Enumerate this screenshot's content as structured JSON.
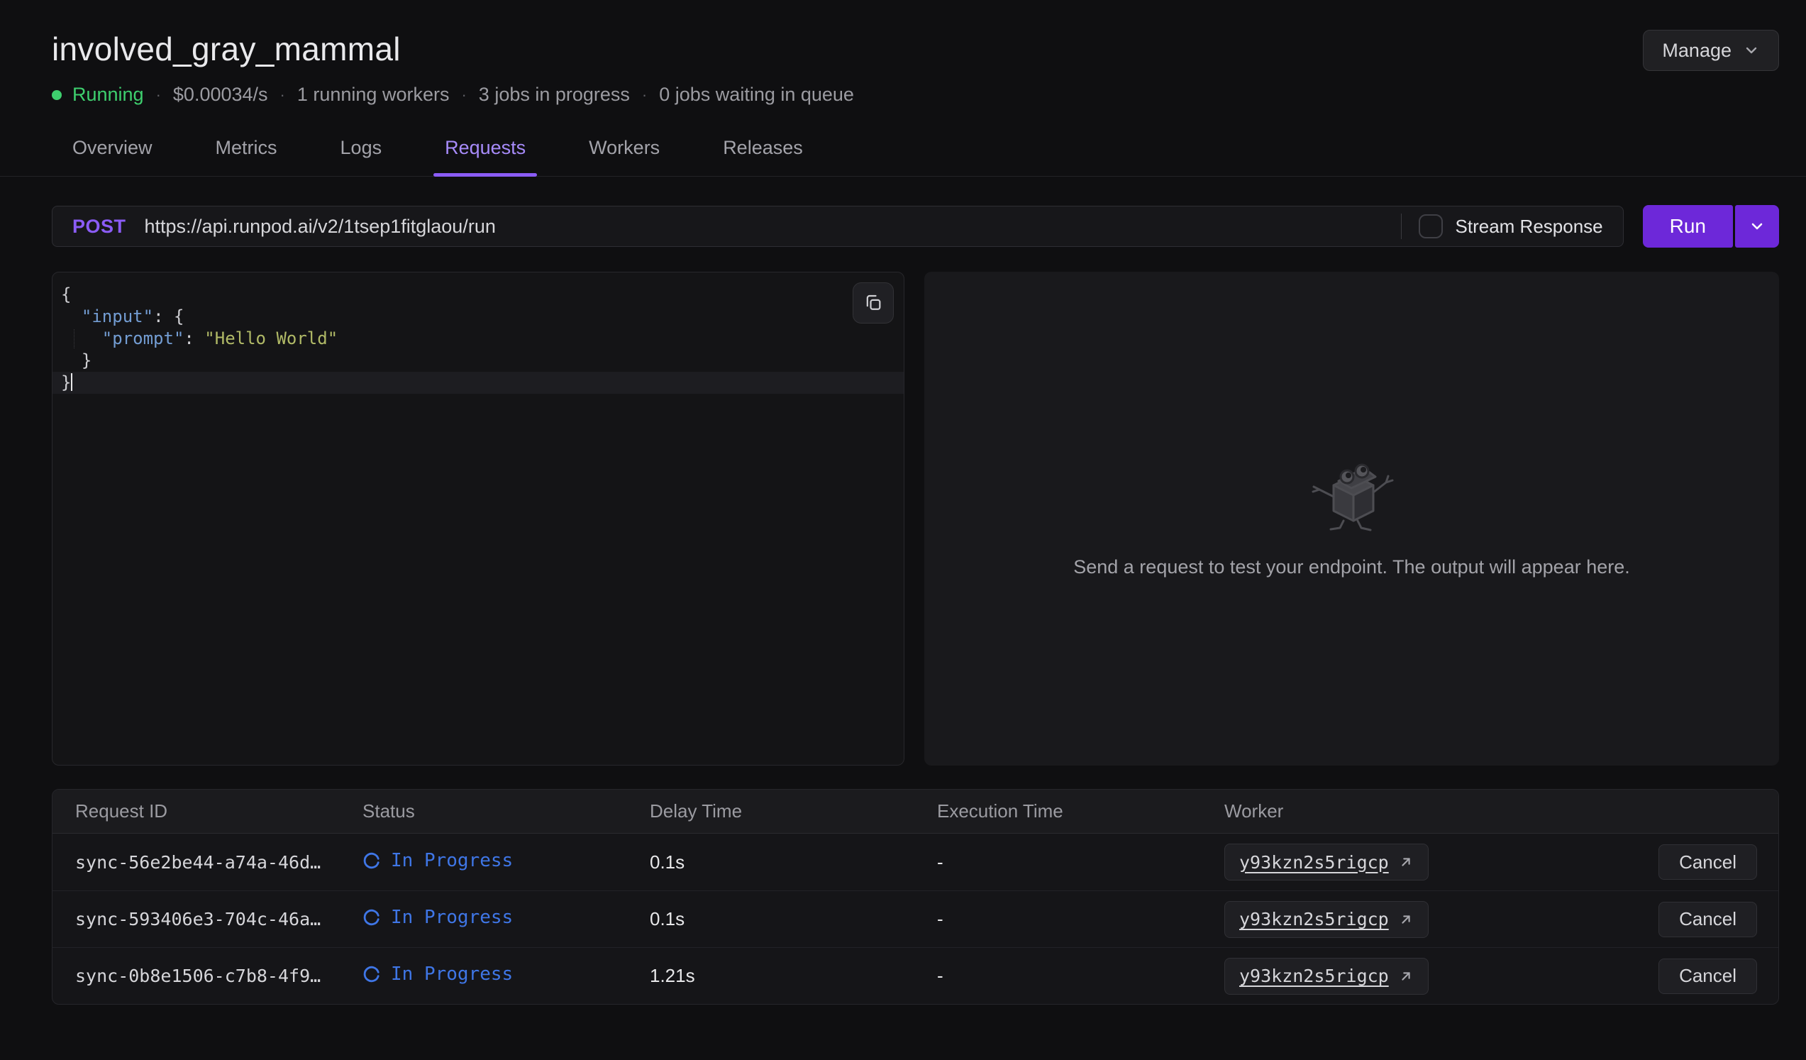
{
  "header": {
    "title": "involved_gray_mammal",
    "manage_label": "Manage",
    "status": {
      "state": "Running",
      "separator": "·",
      "price": "$0.00034/s",
      "workers": "1 running workers",
      "jobs_in_progress": "3 jobs in progress",
      "jobs_waiting": "0 jobs waiting in queue"
    }
  },
  "tabs": [
    {
      "label": "Overview",
      "active": false
    },
    {
      "label": "Metrics",
      "active": false
    },
    {
      "label": "Logs",
      "active": false
    },
    {
      "label": "Requests",
      "active": true
    },
    {
      "label": "Workers",
      "active": false
    },
    {
      "label": "Releases",
      "active": false
    }
  ],
  "request_bar": {
    "method": "POST",
    "url": "https://api.runpod.ai/v2/1tsep1fitglaou/run",
    "stream_label": "Stream Response",
    "stream_checked": false,
    "run_label": "Run"
  },
  "editor": {
    "lines": [
      {
        "tokens": [
          {
            "type": "punct",
            "text": "{"
          }
        ]
      },
      {
        "tokens": [
          {
            "type": "ws",
            "text": "  "
          },
          {
            "type": "key",
            "text": "\"input\""
          },
          {
            "type": "punct",
            "text": ": {"
          }
        ]
      },
      {
        "guide": true,
        "tokens": [
          {
            "type": "ws",
            "text": "    "
          },
          {
            "type": "key",
            "text": "\"prompt\""
          },
          {
            "type": "punct",
            "text": ": "
          },
          {
            "type": "str",
            "text": "\"Hello World\""
          }
        ]
      },
      {
        "tokens": [
          {
            "type": "ws",
            "text": "  "
          },
          {
            "type": "punct",
            "text": "}"
          }
        ]
      },
      {
        "active": true,
        "cursor": true,
        "tokens": [
          {
            "type": "punct",
            "text": "}"
          }
        ]
      }
    ]
  },
  "output_panel": {
    "empty_message": "Send a request to test your endpoint. The output will appear here."
  },
  "requests_table": {
    "columns": [
      "Request ID",
      "Status",
      "Delay Time",
      "Execution Time",
      "Worker"
    ],
    "rows": [
      {
        "request_id": "sync-56e2be44-a74a-46d…",
        "status": "In Progress",
        "delay_time": "0.1s",
        "execution_time": "-",
        "worker": "y93kzn2s5rigcp",
        "cancel_label": "Cancel"
      },
      {
        "request_id": "sync-593406e3-704c-46a…",
        "status": "In Progress",
        "delay_time": "0.1s",
        "execution_time": "-",
        "worker": "y93kzn2s5rigcp",
        "cancel_label": "Cancel"
      },
      {
        "request_id": "sync-0b8e1506-c7b8-4f9…",
        "status": "In Progress",
        "delay_time": "1.21s",
        "execution_time": "-",
        "worker": "y93kzn2s5rigcp",
        "cancel_label": "Cancel"
      }
    ]
  },
  "icons": {
    "manage_chevron": "chevron-down",
    "run_chevron": "chevron-down",
    "copy": "copy",
    "status_spinner": "spinner-arc",
    "worker_link": "arrow-up-right",
    "empty_state": "robot-cube-mascot",
    "stream_checkbox": "checkbox-unchecked"
  },
  "colors": {
    "page_bg": "#0f0f11",
    "accent_purple": "#8b5cf6",
    "active_tab_text": "#a78bfa",
    "run_button": "#6d28d9",
    "status_green": "#3ecf6e",
    "in_progress_blue": "#3f76e6",
    "code_key": "#739dd3",
    "code_string": "#b1ba67"
  }
}
